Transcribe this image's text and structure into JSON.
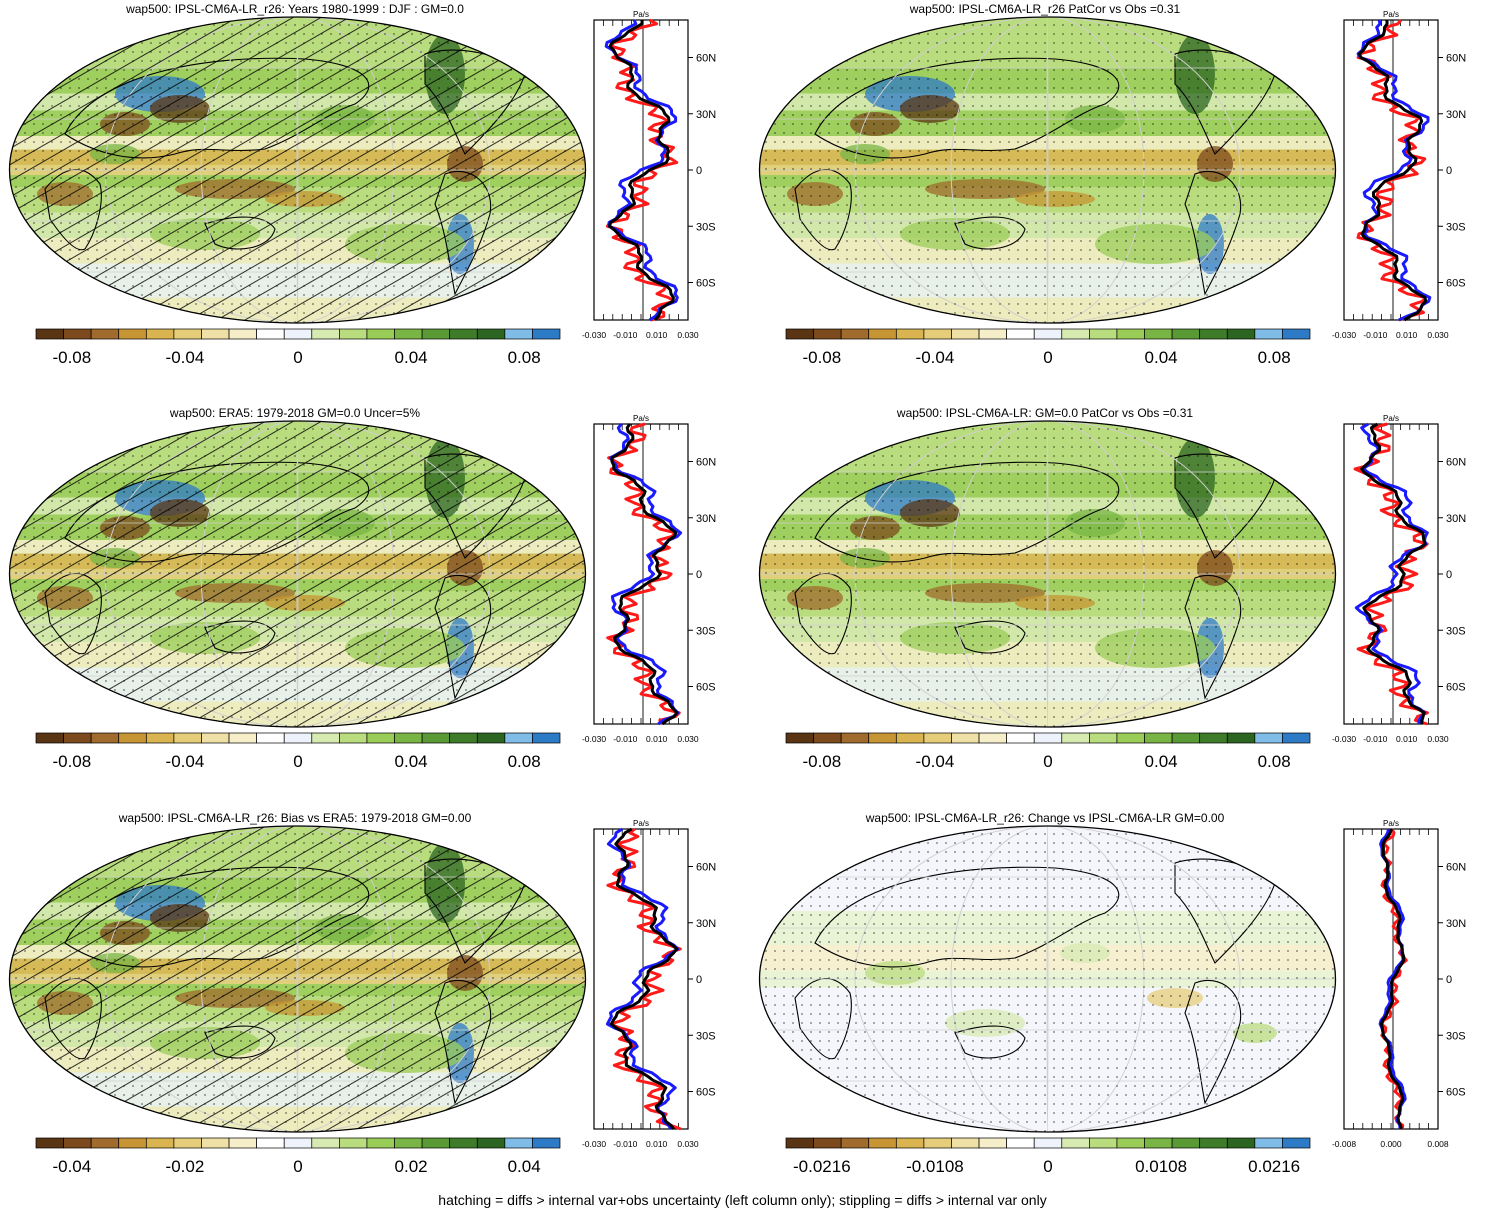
{
  "colors": [
    "#5a3514",
    "#7c4a1c",
    "#a06b2c",
    "#c79533",
    "#d9b450",
    "#e6cd7a",
    "#efe0a6",
    "#f6eec9",
    "#ffffff",
    "#eef3fb",
    "#d6eab2",
    "#b9dc7e",
    "#9acc58",
    "#78b544",
    "#5a9a35",
    "#3e7c2a",
    "#2c6522",
    "#7fbce8",
    "#2d7bc7"
  ],
  "panels": [
    {
      "id": "p1",
      "title": "wap500: IPSL-CM6A-LR_r26: Years 1980-1999 : DJF : GM=0.0",
      "cbar_labels": [
        "-0.08",
        "-0.04",
        "0",
        "0.04",
        "0.08"
      ],
      "profile_unit": "Pa/s",
      "profile_xticks": [
        "-0.030",
        "-0.010",
        "0.010",
        "0.030"
      ],
      "lat_labels": [
        "60N",
        "30N",
        "0",
        "30S",
        "60S"
      ]
    },
    {
      "id": "p2",
      "title": "wap500: IPSL-CM6A-LR_r26 PatCor vs Obs =0.31",
      "cbar_labels": [
        "-0.08",
        "-0.04",
        "0",
        "0.04",
        "0.08"
      ],
      "profile_unit": "Pa/s",
      "profile_xticks": [
        "-0.030",
        "-0.010",
        "0.010",
        "0.030"
      ],
      "lat_labels": [
        "60N",
        "30N",
        "0",
        "30S",
        "60S"
      ]
    },
    {
      "id": "p3",
      "title": "wap500: ERA5: 1979-2018 GM=0.0 Uncer=5%",
      "cbar_labels": [
        "-0.08",
        "-0.04",
        "0",
        "0.04",
        "0.08"
      ],
      "profile_unit": "Pa/s",
      "profile_xticks": [
        "-0.030",
        "-0.010",
        "0.010",
        "0.030"
      ],
      "lat_labels": [
        "60N",
        "30N",
        "0",
        "30S",
        "60S"
      ]
    },
    {
      "id": "p4",
      "title": "wap500: IPSL-CM6A-LR: GM=0.0 PatCor vs Obs =0.31",
      "cbar_labels": [
        "-0.08",
        "-0.04",
        "0",
        "0.04",
        "0.08"
      ],
      "profile_unit": "Pa/s",
      "profile_xticks": [
        "-0.030",
        "-0.010",
        "0.010",
        "0.030"
      ],
      "lat_labels": [
        "60N",
        "30N",
        "0",
        "30S",
        "60S"
      ]
    },
    {
      "id": "p5",
      "title": "wap500: IPSL-CM6A-LR_r26: Bias vs ERA5: 1979-2018 GM=0.00",
      "cbar_labels": [
        "-0.04",
        "-0.02",
        "0",
        "0.02",
        "0.04"
      ],
      "profile_unit": "Pa/s",
      "profile_xticks": [
        "-0.030",
        "-0.010",
        "0.010",
        "0.030"
      ],
      "lat_labels": [
        "60N",
        "30N",
        "0",
        "30S",
        "60S"
      ]
    },
    {
      "id": "p6",
      "title": "wap500: IPSL-CM6A-LR_r26: Change vs IPSL-CM6A-LR GM=0.00",
      "cbar_labels": [
        "-0.0216",
        "-0.0108",
        "0",
        "0.0108",
        "0.0216"
      ],
      "profile_unit": "Pa/s",
      "profile_xticks": [
        "-0.008",
        "0.000",
        "0.008"
      ],
      "lat_labels": [
        "60N",
        "30N",
        "0",
        "30S",
        "60S"
      ]
    }
  ],
  "footer": "hatching = diffs > internal var+obs uncertainty (left column only); stippling = diffs > internal var only"
}
